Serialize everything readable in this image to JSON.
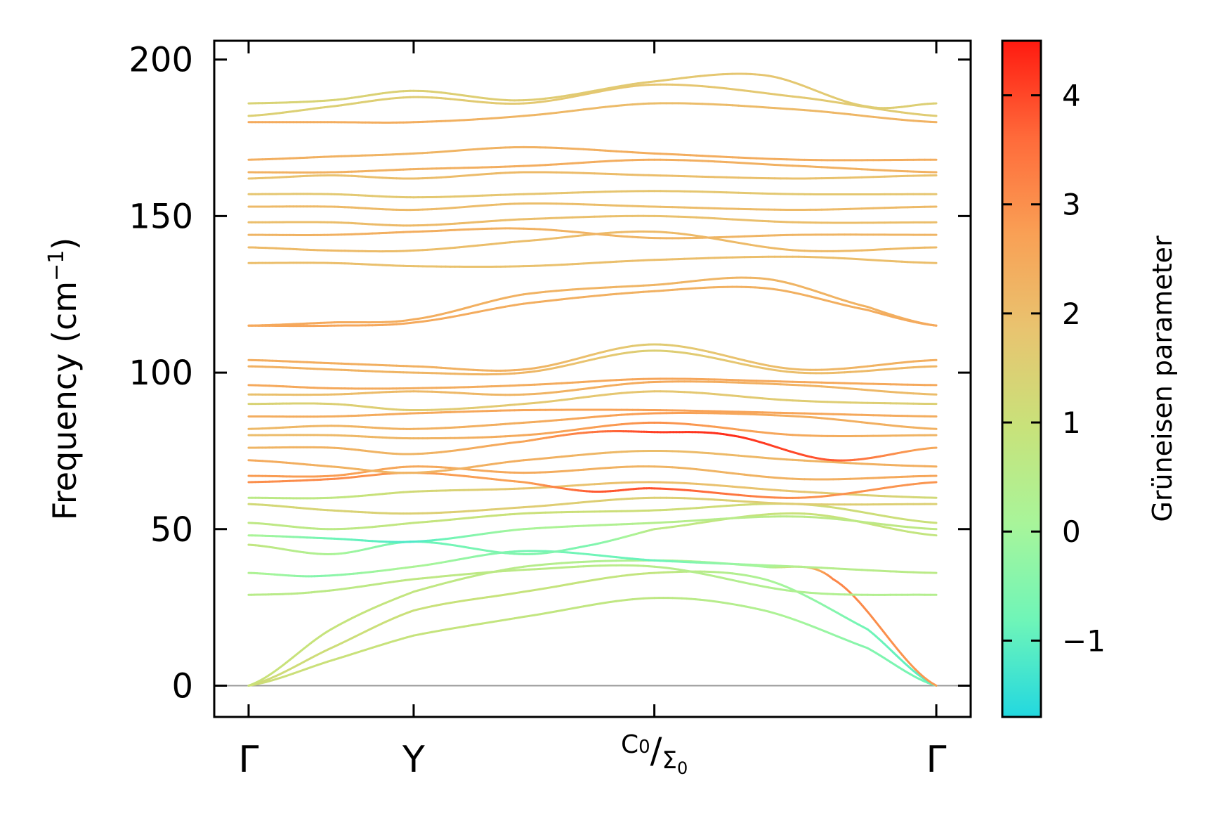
{
  "chart_data": {
    "type": "line",
    "title": "",
    "ylabel": "Frequency (cm",
    "ylabel_sup": "−1",
    "ylabel_close": ")",
    "ylim": [
      -10,
      206
    ],
    "yticks": [
      {
        "value": 0,
        "label": "0"
      },
      {
        "value": 50,
        "label": "50"
      },
      {
        "value": 100,
        "label": "100"
      },
      {
        "value": 150,
        "label": "150"
      },
      {
        "value": 200,
        "label": "200"
      }
    ],
    "xlim": [
      -0.05,
      1.05
    ],
    "xticks": [
      {
        "value": 0,
        "label": "Γ",
        "sub": ""
      },
      {
        "value": 0.24,
        "label": "Y",
        "sub": ""
      },
      {
        "value": 0.59,
        "label": "C",
        "sub": "0",
        "label2": "Σ",
        "sub2": "0"
      },
      {
        "value": 1.0,
        "label": "Γ",
        "sub": ""
      }
    ],
    "zero_line": 0,
    "colorbar": {
      "label": "Grüneisen parameter",
      "range": [
        -1.7,
        4.5
      ],
      "ticks": [
        {
          "value": -1,
          "label": "−1"
        },
        {
          "value": 0,
          "label": "0"
        },
        {
          "value": 1,
          "label": "1"
        },
        {
          "value": 2,
          "label": "2"
        },
        {
          "value": 3,
          "label": "3"
        },
        {
          "value": 4,
          "label": "4"
        }
      ],
      "colors": [
        "#22d8e0",
        "#6ff5b8",
        "#a8f59a",
        "#c8e27a",
        "#e8c470",
        "#f9a055",
        "#ff6a3a",
        "#ff1a10"
      ]
    },
    "bands": [
      {
        "x": [
          0,
          0.12,
          0.24,
          0.4,
          0.59,
          0.75,
          0.9,
          1.0
        ],
        "y": [
          0,
          8,
          16,
          22,
          28,
          24,
          12,
          0
        ],
        "g": [
          1.1,
          1.0,
          0.9,
          0.8,
          0.7,
          0.3,
          -0.5,
          -0.8
        ]
      },
      {
        "x": [
          0,
          0.12,
          0.24,
          0.4,
          0.59,
          0.75,
          0.9,
          1.0
        ],
        "y": [
          0,
          12,
          24,
          30,
          36,
          34,
          18,
          0
        ],
        "g": [
          1.2,
          1.1,
          1.0,
          0.9,
          0.8,
          0.2,
          -0.8,
          -1.1
        ]
      },
      {
        "x": [
          0,
          0.12,
          0.24,
          0.4,
          0.59,
          0.75,
          0.85,
          1.0
        ],
        "y": [
          0,
          18,
          30,
          38,
          40,
          38,
          34,
          0
        ],
        "g": [
          1.0,
          0.9,
          0.8,
          0.5,
          0.2,
          0.0,
          3.2,
          2.8
        ]
      },
      {
        "x": [
          0,
          0.1,
          0.24,
          0.4,
          0.59,
          0.8,
          1.0
        ],
        "y": [
          29,
          30,
          34,
          37,
          38,
          30,
          29
        ],
        "g": [
          0.5,
          0.6,
          0.7,
          0.6,
          0.5,
          0.3,
          0.4
        ]
      },
      {
        "x": [
          0,
          0.1,
          0.24,
          0.4,
          0.59,
          0.8,
          1.0
        ],
        "y": [
          36,
          35,
          38,
          43,
          40,
          38,
          36
        ],
        "g": [
          0.3,
          -0.5,
          0.2,
          -0.7,
          -0.9,
          0.4,
          0.6
        ]
      },
      {
        "x": [
          0,
          0.12,
          0.24,
          0.4,
          0.5,
          0.59,
          0.8,
          1.0
        ],
        "y": [
          45,
          42,
          46,
          42,
          45,
          50,
          55,
          48
        ],
        "g": [
          0.8,
          0.2,
          -0.9,
          -0.5,
          -0.6,
          0.6,
          1.0,
          0.8
        ]
      },
      {
        "x": [
          0,
          0.12,
          0.24,
          0.4,
          0.59,
          0.8,
          1.0
        ],
        "y": [
          48,
          47,
          46,
          50,
          52,
          54,
          50
        ],
        "g": [
          0.2,
          -0.8,
          -1.2,
          0.1,
          0.4,
          0.6,
          0.7
        ]
      },
      {
        "x": [
          0,
          0.12,
          0.24,
          0.4,
          0.59,
          0.8,
          1.0
        ],
        "y": [
          52,
          50,
          52,
          55,
          56,
          58,
          52
        ],
        "g": [
          0.7,
          0.6,
          0.8,
          1.0,
          1.1,
          1.2,
          1.0
        ]
      },
      {
        "x": [
          0,
          0.12,
          0.24,
          0.4,
          0.59,
          0.8,
          1.0
        ],
        "y": [
          58,
          56,
          55,
          57,
          60,
          58,
          58
        ],
        "g": [
          1.2,
          1.4,
          1.5,
          1.6,
          1.5,
          1.6,
          1.5
        ]
      },
      {
        "x": [
          0,
          0.12,
          0.24,
          0.4,
          0.59,
          0.8,
          1.0
        ],
        "y": [
          60,
          60,
          62,
          63,
          65,
          62,
          60
        ],
        "g": [
          0.6,
          0.7,
          1.2,
          1.8,
          2.0,
          1.8,
          1.2
        ]
      },
      {
        "x": [
          0,
          0.12,
          0.24,
          0.4,
          0.5,
          0.59,
          0.8,
          1.0
        ],
        "y": [
          65,
          66,
          68,
          65,
          62,
          63,
          60,
          65
        ],
        "g": [
          3.0,
          3.1,
          2.8,
          2.7,
          3.8,
          3.9,
          3.0,
          2.9
        ]
      },
      {
        "x": [
          0,
          0.12,
          0.24,
          0.4,
          0.59,
          0.8,
          1.0
        ],
        "y": [
          67,
          67,
          70,
          68,
          70,
          66,
          67
        ],
        "g": [
          2.8,
          2.8,
          2.5,
          2.5,
          2.2,
          2.3,
          2.6
        ]
      },
      {
        "x": [
          0,
          0.12,
          0.24,
          0.4,
          0.59,
          0.8,
          1.0
        ],
        "y": [
          72,
          70,
          68,
          72,
          75,
          72,
          70
        ],
        "g": [
          2.5,
          2.3,
          2.2,
          2.4,
          2.0,
          2.2,
          2.4
        ]
      },
      {
        "x": [
          0,
          0.12,
          0.24,
          0.4,
          0.5,
          0.59,
          0.7,
          0.85,
          1.0
        ],
        "y": [
          76,
          76,
          74,
          78,
          81,
          81,
          80,
          72,
          76
        ],
        "g": [
          2.2,
          2.3,
          2.2,
          2.6,
          3.4,
          4.1,
          4.3,
          3.8,
          2.5
        ]
      },
      {
        "x": [
          0,
          0.12,
          0.24,
          0.4,
          0.59,
          0.8,
          1.0
        ],
        "y": [
          80,
          80,
          79,
          80,
          84,
          80,
          80
        ],
        "g": [
          2.0,
          2.1,
          2.2,
          2.5,
          3.0,
          2.5,
          2.2
        ]
      },
      {
        "x": [
          0,
          0.12,
          0.24,
          0.4,
          0.59,
          0.8,
          1.0
        ],
        "y": [
          82,
          83,
          82,
          84,
          87,
          86,
          82
        ],
        "g": [
          2.1,
          2.2,
          2.3,
          2.4,
          2.8,
          2.4,
          2.3
        ]
      },
      {
        "x": [
          0,
          0.12,
          0.24,
          0.4,
          0.59,
          0.8,
          1.0
        ],
        "y": [
          86,
          86,
          87,
          88,
          88,
          87,
          86
        ],
        "g": [
          2.4,
          2.4,
          2.5,
          2.6,
          2.7,
          2.6,
          2.4
        ]
      },
      {
        "x": [
          0,
          0.12,
          0.24,
          0.4,
          0.59,
          0.8,
          1.0
        ],
        "y": [
          90,
          90,
          88,
          90,
          94,
          91,
          90
        ],
        "g": [
          1.4,
          1.5,
          1.6,
          1.7,
          1.8,
          1.6,
          1.5
        ]
      },
      {
        "x": [
          0,
          0.12,
          0.24,
          0.4,
          0.59,
          0.8,
          1.0
        ],
        "y": [
          93,
          93,
          94,
          93,
          97,
          96,
          93
        ],
        "g": [
          1.9,
          2.0,
          2.1,
          2.2,
          2.5,
          2.3,
          2.0
        ]
      },
      {
        "x": [
          0,
          0.12,
          0.24,
          0.4,
          0.59,
          0.8,
          1.0
        ],
        "y": [
          96,
          95,
          95,
          96,
          98,
          97,
          96
        ],
        "g": [
          2.5,
          2.5,
          2.4,
          2.4,
          2.6,
          2.5,
          2.5
        ]
      },
      {
        "x": [
          0,
          0.12,
          0.24,
          0.4,
          0.59,
          0.8,
          1.0
        ],
        "y": [
          102,
          101,
          100,
          100,
          107,
          100,
          102
        ],
        "g": [
          2.3,
          2.3,
          2.2,
          2.2,
          1.5,
          2.0,
          2.2
        ]
      },
      {
        "x": [
          0,
          0.12,
          0.24,
          0.4,
          0.59,
          0.8,
          1.0
        ],
        "y": [
          104,
          103,
          102,
          101,
          109,
          101,
          104
        ],
        "g": [
          2.4,
          2.4,
          2.3,
          2.3,
          1.6,
          2.1,
          2.4
        ]
      },
      {
        "x": [
          0,
          0.12,
          0.24,
          0.4,
          0.59,
          0.75,
          0.9,
          1.0
        ],
        "y": [
          115,
          115,
          116,
          122,
          126,
          127,
          120,
          115
        ],
        "g": [
          2.6,
          2.6,
          2.5,
          2.4,
          2.3,
          2.3,
          2.4,
          2.6
        ]
      },
      {
        "x": [
          0,
          0.12,
          0.24,
          0.4,
          0.59,
          0.75,
          0.9,
          1.0
        ],
        "y": [
          115,
          116,
          117,
          125,
          128,
          130,
          121,
          115
        ],
        "g": [
          2.5,
          2.5,
          2.4,
          2.3,
          2.2,
          2.2,
          2.3,
          2.5
        ]
      },
      {
        "x": [
          0,
          0.12,
          0.24,
          0.4,
          0.59,
          0.8,
          1.0
        ],
        "y": [
          135,
          135,
          134,
          134,
          136,
          137,
          135
        ],
        "g": [
          2.0,
          2.0,
          1.9,
          1.9,
          2.0,
          2.0,
          2.0
        ]
      },
      {
        "x": [
          0,
          0.12,
          0.24,
          0.4,
          0.59,
          0.8,
          1.0
        ],
        "y": [
          140,
          139,
          139,
          142,
          145,
          139,
          140
        ],
        "g": [
          2.1,
          2.1,
          2.0,
          2.0,
          2.1,
          2.1,
          2.1
        ]
      },
      {
        "x": [
          0,
          0.12,
          0.24,
          0.4,
          0.59,
          0.8,
          1.0
        ],
        "y": [
          144,
          144,
          145,
          146,
          143,
          144,
          144
        ],
        "g": [
          2.2,
          2.3,
          2.4,
          2.3,
          2.2,
          2.2,
          2.2
        ]
      },
      {
        "x": [
          0,
          0.12,
          0.24,
          0.4,
          0.59,
          0.8,
          1.0
        ],
        "y": [
          148,
          148,
          147,
          149,
          150,
          148,
          148
        ],
        "g": [
          2.0,
          2.0,
          2.1,
          2.0,
          1.9,
          2.0,
          2.0
        ]
      },
      {
        "x": [
          0,
          0.12,
          0.24,
          0.4,
          0.59,
          0.8,
          1.0
        ],
        "y": [
          153,
          153,
          152,
          154,
          153,
          152,
          153
        ],
        "g": [
          2.1,
          2.1,
          2.1,
          2.0,
          2.0,
          2.1,
          2.1
        ]
      },
      {
        "x": [
          0,
          0.12,
          0.24,
          0.4,
          0.59,
          0.8,
          1.0
        ],
        "y": [
          157,
          157,
          156,
          157,
          158,
          157,
          157
        ],
        "g": [
          1.8,
          1.7,
          1.7,
          1.8,
          1.8,
          1.7,
          1.8
        ]
      },
      {
        "x": [
          0,
          0.12,
          0.24,
          0.4,
          0.59,
          0.8,
          1.0
        ],
        "y": [
          162,
          163,
          162,
          164,
          163,
          162,
          163
        ],
        "g": [
          1.9,
          1.9,
          2.0,
          2.1,
          2.0,
          1.9,
          1.9
        ]
      },
      {
        "x": [
          0,
          0.12,
          0.24,
          0.4,
          0.59,
          0.8,
          1.0
        ],
        "y": [
          164,
          164,
          165,
          166,
          168,
          166,
          164
        ],
        "g": [
          2.3,
          2.3,
          2.3,
          2.4,
          2.4,
          2.3,
          2.3
        ]
      },
      {
        "x": [
          0,
          0.12,
          0.24,
          0.4,
          0.59,
          0.8,
          1.0
        ],
        "y": [
          168,
          169,
          170,
          172,
          170,
          168,
          168
        ],
        "g": [
          2.4,
          2.3,
          2.2,
          2.3,
          2.4,
          2.4,
          2.4
        ]
      },
      {
        "x": [
          0,
          0.12,
          0.24,
          0.4,
          0.59,
          0.8,
          1.0
        ],
        "y": [
          180,
          180,
          180,
          182,
          186,
          184,
          180
        ],
        "g": [
          2.5,
          2.4,
          2.4,
          2.2,
          2.0,
          2.1,
          2.3
        ]
      },
      {
        "x": [
          0,
          0.12,
          0.24,
          0.4,
          0.59,
          0.8,
          1.0
        ],
        "y": [
          182,
          185,
          188,
          186,
          192,
          188,
          182
        ],
        "g": [
          1.5,
          1.5,
          1.6,
          1.7,
          1.8,
          1.7,
          1.6
        ]
      },
      {
        "x": [
          0,
          0.12,
          0.24,
          0.4,
          0.59,
          0.75,
          0.9,
          1.0
        ],
        "y": [
          186,
          187,
          190,
          187,
          193,
          195,
          185,
          186
        ],
        "g": [
          1.4,
          1.4,
          1.5,
          1.6,
          1.7,
          1.8,
          1.6,
          1.5
        ]
      }
    ]
  }
}
